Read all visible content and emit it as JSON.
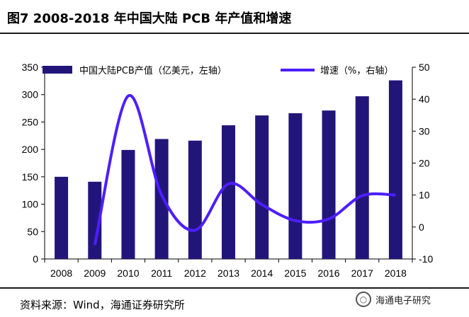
{
  "page": {
    "title": "图7  2008-2018 年中国大陆 PCB 年产值和增速",
    "source": "资料来源：Wind，海通证券研究所",
    "watermark": "海通电子研究"
  },
  "colors": {
    "bar": "#22157a",
    "line": "#4d1eff"
  },
  "chart_data": {
    "type": "bar",
    "categories": [
      "2008",
      "2009",
      "2010",
      "2011",
      "2012",
      "2013",
      "2014",
      "2015",
      "2016",
      "2017",
      "2018"
    ],
    "series": [
      {
        "name": "中国大陆PCB产值（亿美元，左轴）",
        "type": "bar",
        "axis": "left",
        "values": [
          150,
          141,
          199,
          219,
          216,
          244,
          262,
          266,
          271,
          297,
          326
        ]
      },
      {
        "name": "增速（%，右轴）",
        "type": "line",
        "axis": "right",
        "values": [
          null,
          -5.6,
          41.0,
          10.0,
          -1.0,
          13.5,
          7.0,
          2.0,
          2.5,
          9.8,
          10.0
        ]
      }
    ],
    "ylim_left": [
      0,
      350
    ],
    "ylim_right": [
      -10,
      50
    ],
    "yticks_left": [
      "0",
      "50",
      "100",
      "150",
      "200",
      "250",
      "300",
      "350"
    ],
    "yticks_right": [
      "-10",
      "0",
      "10",
      "20",
      "30",
      "40",
      "50"
    ],
    "grid": false,
    "legend": "top"
  }
}
